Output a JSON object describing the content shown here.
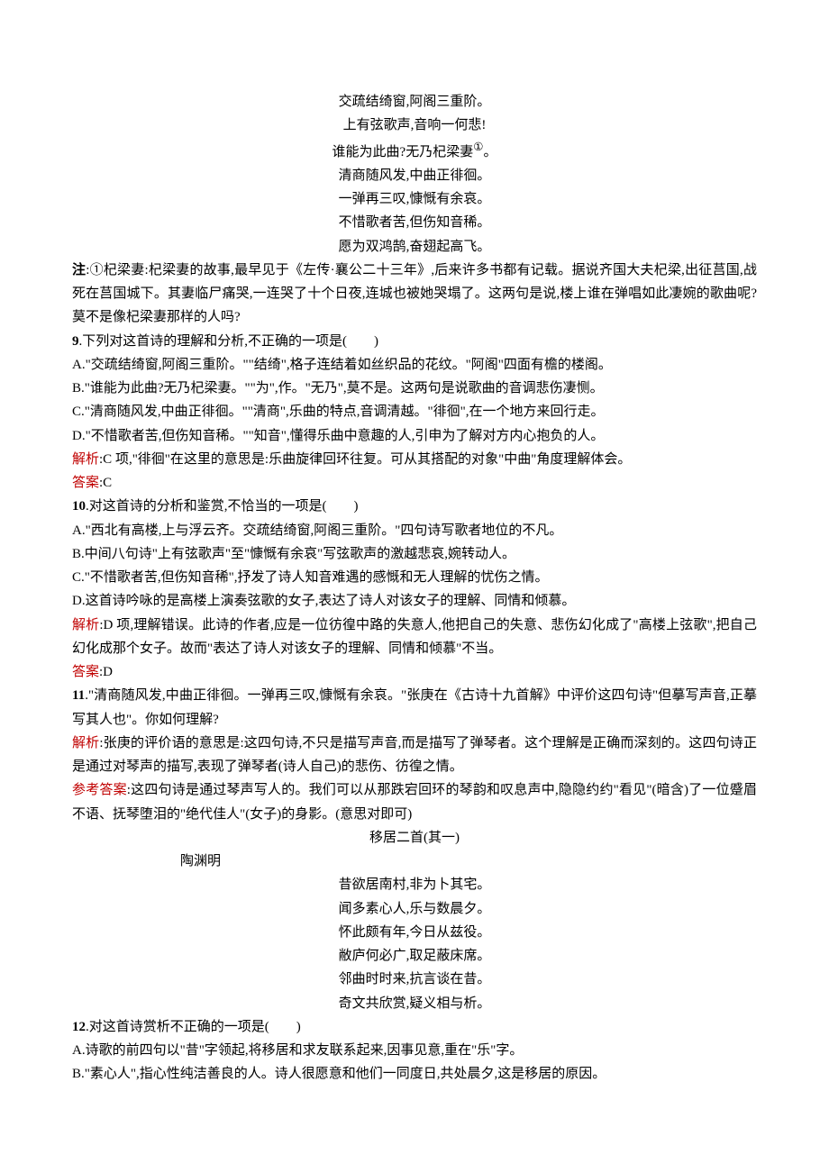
{
  "poem1": {
    "lines": [
      "交疏结绮窗,阿阁三重阶。",
      "上有弦歌声,音响一何悲!",
      "谁能为此曲?无乃杞梁妻",
      "清商随风发,中曲正徘徊。",
      "一弹再三叹,慷慨有余哀。",
      "不惜歌者苦,但伤知音稀。",
      "愿为双鸿鹄,奋翅起高飞。"
    ],
    "super": "①",
    "super_tail": "。"
  },
  "note": {
    "label": "注",
    "text": ":①杞梁妻:杞梁妻的故事,最早见于《左传·襄公二十三年》,后来许多书都有记载。据说齐国大夫杞梁,出征莒国,战死在莒国城下。其妻临尸痛哭,一连哭了十个日夜,连城也被她哭塌了。这两句是说,楼上谁在弹唱如此凄婉的歌曲呢?莫不是像杞梁妻那样的人吗?"
  },
  "q9": {
    "num": "9",
    "stem": ".下列对这首诗的理解和分析,不正确的一项是(　　)",
    "a": "A.\"交疏结绮窗,阿阁三重阶。\"\"结绮\",格子连结着如丝织品的花纹。\"阿阁\"四面有檐的楼阁。",
    "b": "B.\"谁能为此曲?无乃杞梁妻。\"\"为\",作。\"无乃\",莫不是。这两句是说歌曲的音调悲伤凄恻。",
    "c": "C.\"清商随风发,中曲正徘徊。\"\"清商\",乐曲的特点,音调清越。\"徘徊\",在一个地方来回行走。",
    "d": "D.\"不惜歌者苦,但伤知音稀。\"\"知音\",懂得乐曲中意趣的人,引申为了解对方内心抱负的人。",
    "analysis_label": "解析",
    "analysis": ":C 项,\"徘徊\"在这里的意思是:乐曲旋律回环往复。可从其搭配的对象\"中曲\"角度理解体会。",
    "answer_label": "答案",
    "answer": ":C"
  },
  "q10": {
    "num": "10",
    "stem": ".对这首诗的分析和鉴赏,不恰当的一项是(　　)",
    "a": "A.\"西北有高楼,上与浮云齐。交疏结绮窗,阿阁三重阶。\"四句诗写歌者地位的不凡。",
    "b": "B.中间八句诗\"上有弦歌声\"至\"慷慨有余哀\"写弦歌声的激越悲哀,婉转动人。",
    "c": "C.\"不惜歌者苦,但伤知音稀\",抒发了诗人知音难遇的感慨和无人理解的忧伤之情。",
    "d": "D.这首诗吟咏的是高楼上演奏弦歌的女子,表达了诗人对该女子的理解、同情和倾慕。",
    "analysis_label": "解析",
    "analysis": ":D 项,理解错误。此诗的作者,应是一位彷徨中路的失意人,他把自己的失意、悲伤幻化成了\"高楼上弦歌\",把自己幻化成那个女子。故而\"表达了诗人对该女子的理解、同情和倾慕\"不当。",
    "answer_label": "答案",
    "answer": ":D"
  },
  "q11": {
    "num": "11",
    "stem": ".\"清商随风发,中曲正徘徊。一弹再三叹,慷慨有余哀。\"张庚在《古诗十九首解》中评价这四句诗\"但摹写声音,正摹写其人也\"。你如何理解?",
    "analysis_label": "解析",
    "analysis": ":张庚的评价语的意思是:这四句诗,不只是描写声音,而是描写了弹琴者。这个理解是正确而深刻的。这四句诗正是通过对琴声的描写,表现了弹琴者(诗人自己)的悲伤、彷徨之情。",
    "ref_label": "参考答案",
    "ref": ":这四句诗是通过琴声写人的。我们可以从那跌宕回环的琴韵和叹息声中,隐隐约约\"看见\"(暗含)了一位蹙眉不语、抚琴堕泪的\"绝代佳人\"(女子)的身影。(意思对即可)"
  },
  "poem2": {
    "title": "移居二首(其一)",
    "author": "陶渊明",
    "lines": [
      "昔欲居南村,非为卜其宅。",
      "闻多素心人,乐与数晨夕。",
      "怀此颇有年,今日从兹役。",
      "敝庐何必广,取足蔽床席。",
      "邻曲时时来,抗言谈在昔。",
      "奇文共欣赏,疑义相与析。"
    ]
  },
  "q12": {
    "num": "12",
    "stem": ".对这首诗赏析不正确的一项是(　　)",
    "a": "A.诗歌的前四句以\"昔\"字领起,将移居和求友联系起来,因事见意,重在\"乐\"字。",
    "b": "B.\"素心人\",指心性纯洁善良的人。诗人很愿意和他们一同度日,共处晨夕,这是移居的原因。"
  }
}
